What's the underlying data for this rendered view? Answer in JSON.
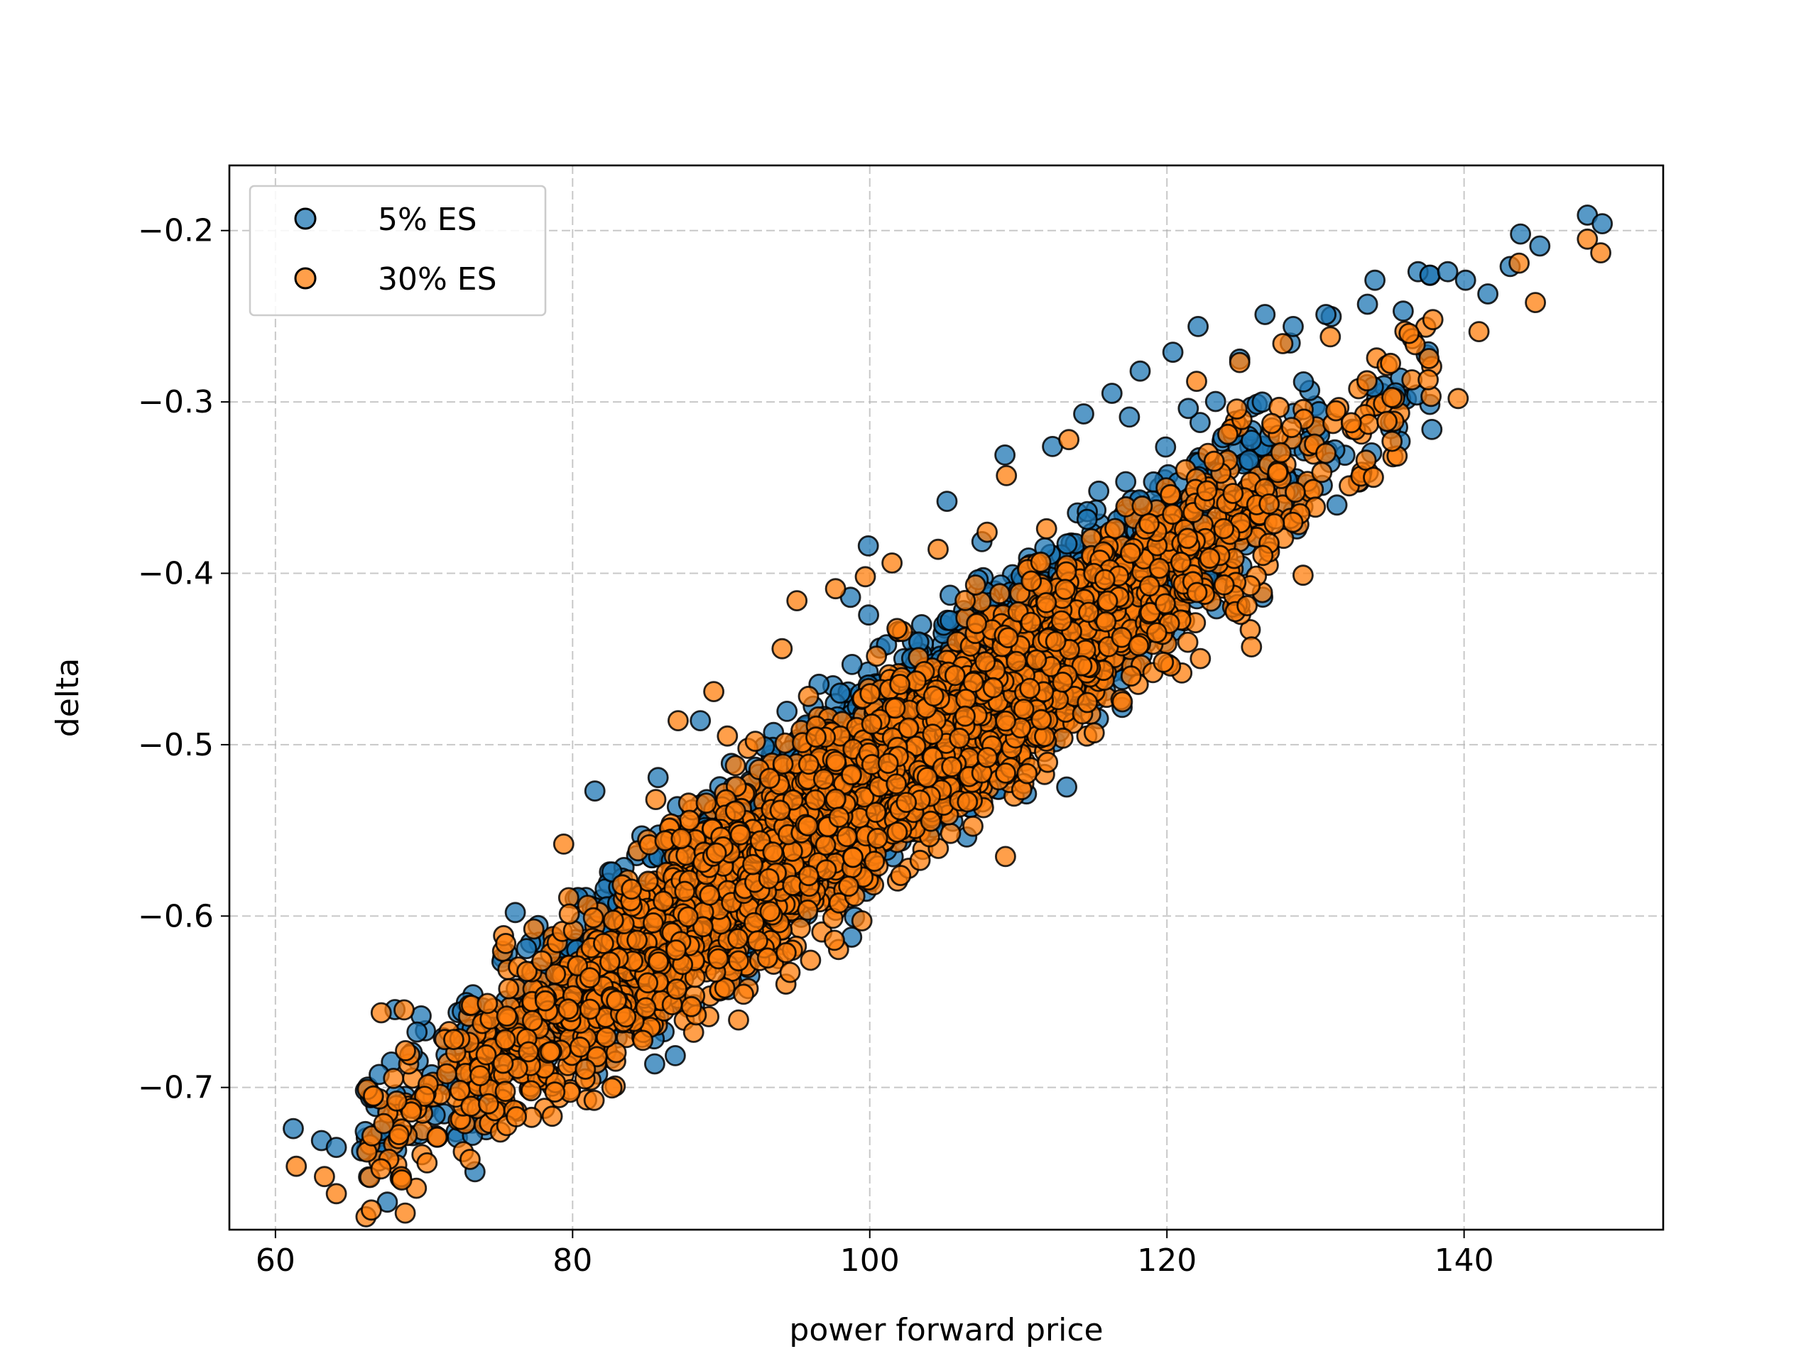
{
  "chart_data": {
    "type": "scatter",
    "title": "",
    "xlabel": "power forward price",
    "ylabel": "delta",
    "xlim": [
      56.9,
      153.4
    ],
    "ylim": [
      -0.783,
      -0.162
    ],
    "xticks": [
      60,
      80,
      100,
      120,
      140
    ],
    "xtick_labels": [
      "60",
      "80",
      "100",
      "120",
      "140"
    ],
    "yticks": [
      -0.2,
      -0.3,
      -0.4,
      -0.5,
      -0.6,
      -0.7
    ],
    "ytick_labels": [
      "−0.2",
      "−0.3",
      "−0.4",
      "−0.5",
      "−0.6",
      "−0.7"
    ],
    "grid": true,
    "legend_position": "top-left",
    "series": [
      {
        "name": "5% ES",
        "color": "#1f77b4",
        "trend": {
          "x0": 65,
          "y0": -0.735,
          "x1": 140,
          "y1": -0.262,
          "x_center": 100,
          "x_spread": 13.5,
          "residual_sd": 0.034
        },
        "x": [
          61.2,
          63.1,
          64.1,
          65.8,
          66.4,
          67.2,
          71.3,
          76.9,
          81.5,
          88.6,
          98.7,
          99.9,
          105.2,
          109.1,
          112.3,
          114.4,
          116.3,
          117.0,
          118.2,
          120.4,
          122.1,
          124.9,
          126.6,
          128.5,
          130.7,
          133.5,
          134.0,
          135.9,
          136.9,
          137.7,
          138.9,
          140.1,
          141.6,
          143.1,
          143.8,
          145.1,
          148.3,
          149.3
        ],
        "y": [
          -0.724,
          -0.731,
          -0.735,
          -0.737,
          -0.706,
          -0.738,
          -0.671,
          -0.619,
          -0.527,
          -0.486,
          -0.414,
          -0.384,
          -0.358,
          -0.331,
          -0.326,
          -0.307,
          -0.295,
          -0.462,
          -0.282,
          -0.271,
          -0.256,
          -0.275,
          -0.249,
          -0.256,
          -0.249,
          -0.243,
          -0.229,
          -0.247,
          -0.224,
          -0.226,
          -0.224,
          -0.229,
          -0.237,
          -0.221,
          -0.202,
          -0.209,
          -0.191,
          -0.196
        ]
      },
      {
        "name": "30% ES",
        "color": "#ff7f0e",
        "trend": {
          "x0": 65,
          "y0": -0.745,
          "x1": 140,
          "y1": -0.275,
          "x_center": 100,
          "x_spread": 13.5,
          "residual_sd": 0.034
        },
        "x": [
          61.4,
          63.3,
          64.1,
          66.6,
          68.5,
          70.2,
          72.0,
          73.1,
          75.5,
          77.3,
          79.4,
          81.4,
          85.6,
          87.1,
          89.5,
          92.3,
          94.1,
          95.1,
          97.7,
          99.7,
          101.5,
          104.6,
          107.9,
          109.2,
          113.4,
          117.0,
          118.8,
          122.0,
          124.9,
          127.8,
          131.0,
          133.4,
          133.9,
          136.3,
          137.9,
          139.6,
          141.0,
          143.7,
          144.8,
          148.3,
          149.2
        ],
        "y": [
          -0.746,
          -0.752,
          -0.762,
          -0.705,
          -0.754,
          -0.744,
          -0.672,
          -0.742,
          -0.616,
          -0.661,
          -0.558,
          -0.601,
          -0.532,
          -0.486,
          -0.469,
          -0.498,
          -0.444,
          -0.416,
          -0.409,
          -0.402,
          -0.394,
          -0.386,
          -0.376,
          -0.343,
          -0.322,
          -0.475,
          -0.371,
          -0.288,
          -0.277,
          -0.266,
          -0.262,
          -0.334,
          -0.344,
          -0.26,
          -0.252,
          -0.298,
          -0.259,
          -0.219,
          -0.242,
          -0.205,
          -0.213
        ]
      }
    ]
  }
}
